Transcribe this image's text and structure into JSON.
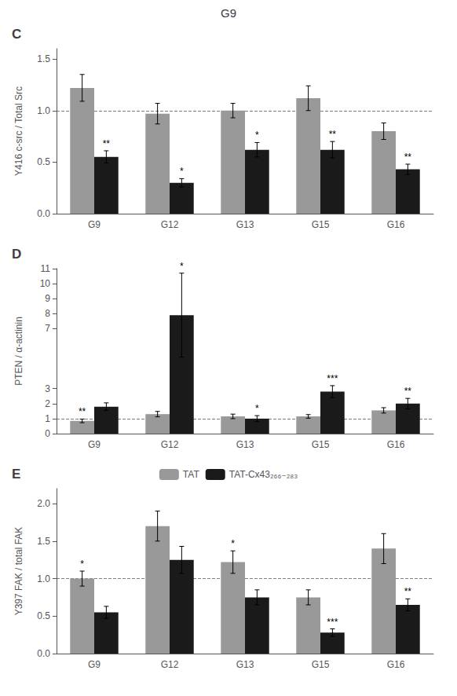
{
  "title": "G9",
  "chart_data": [
    {
      "type": "bar",
      "title": "C",
      "y_label": "Y416 c-src / Total Src",
      "categories": [
        "G9",
        "G12",
        "G13",
        "G15",
        "G16"
      ],
      "series": [
        {
          "color": "#999999",
          "values": [
            1.22,
            0.97,
            1.0,
            1.12,
            0.8
          ],
          "errors": [
            0.13,
            0.1,
            0.07,
            0.12,
            0.08
          ],
          "significance": [
            null,
            null,
            null,
            null,
            null
          ]
        },
        {
          "color": "#1a1a1a",
          "values": [
            0.55,
            0.3,
            0.62,
            0.62,
            0.43
          ],
          "errors": [
            0.06,
            0.04,
            0.07,
            0.08,
            0.05
          ],
          "significance": [
            "**",
            "*",
            "*",
            "**",
            "**"
          ]
        }
      ],
      "ylim": [
        0,
        1.6
      ],
      "yticks": [
        {
          "value": 0,
          "label": "0.0"
        },
        0.5,
        {
          "value": 1,
          "label": "1.0"
        },
        1.5
      ],
      "grid": false,
      "reference_line": {
        "value": 1,
        "color": "#808080",
        "line_style": "dashed"
      }
    },
    {
      "type": "bar",
      "title": "D",
      "y_label": "PTEN / α-actinin",
      "categories": [
        "G9",
        "G12",
        "G13",
        "G15",
        "G16"
      ],
      "series": [
        {
          "color": "#999999",
          "values": [
            0.85,
            1.3,
            1.15,
            1.15,
            1.55
          ],
          "errors": [
            0.12,
            0.18,
            0.15,
            0.12,
            0.18
          ],
          "significance": [
            "**",
            null,
            null,
            null,
            null
          ]
        },
        {
          "color": "#1a1a1a",
          "values": [
            1.8,
            7.9,
            1.0,
            2.8,
            2.0
          ],
          "errors": [
            0.25,
            2.8,
            0.2,
            0.4,
            0.35
          ],
          "significance": [
            null,
            "*",
            "*",
            "***",
            "**"
          ]
        }
      ],
      "ylim": [
        0,
        11
      ],
      "yticks": [
        0,
        1,
        2,
        3,
        7,
        8,
        9,
        10,
        11
      ],
      "grid": false,
      "reference_line": {
        "value": 1,
        "color": "#808080",
        "line_style": "dashed"
      }
    },
    {
      "type": "bar",
      "title": "E",
      "y_label": "Y397 FAK / total FAK",
      "categories": [
        "G9",
        "G12",
        "G13",
        "G15",
        "G16"
      ],
      "series": [
        {
          "name": "TAT",
          "color": "#999999",
          "values": [
            1.0,
            1.7,
            1.22,
            0.75,
            1.4
          ],
          "errors": [
            0.1,
            0.2,
            0.15,
            0.1,
            0.2
          ],
          "significance": [
            "*",
            null,
            "*",
            null,
            null
          ]
        },
        {
          "name": "TAT-Cx43₂₆₆₋₂₈₃",
          "color": "#1a1a1a",
          "values": [
            0.55,
            1.25,
            0.75,
            0.28,
            0.65
          ],
          "errors": [
            0.08,
            0.18,
            0.1,
            0.05,
            0.08
          ],
          "significance": [
            null,
            null,
            null,
            "***",
            "**"
          ]
        }
      ],
      "ylim": [
        0,
        2.2
      ],
      "yticks": [
        {
          "value": 0,
          "label": "0.0"
        },
        0.5,
        {
          "value": 1,
          "label": "1.0"
        },
        1.5,
        {
          "value": 2,
          "label": "2.0"
        }
      ],
      "grid": false,
      "legend": "top",
      "reference_line": {
        "value": 1,
        "color": "#808080",
        "line_style": "dashed"
      }
    }
  ]
}
